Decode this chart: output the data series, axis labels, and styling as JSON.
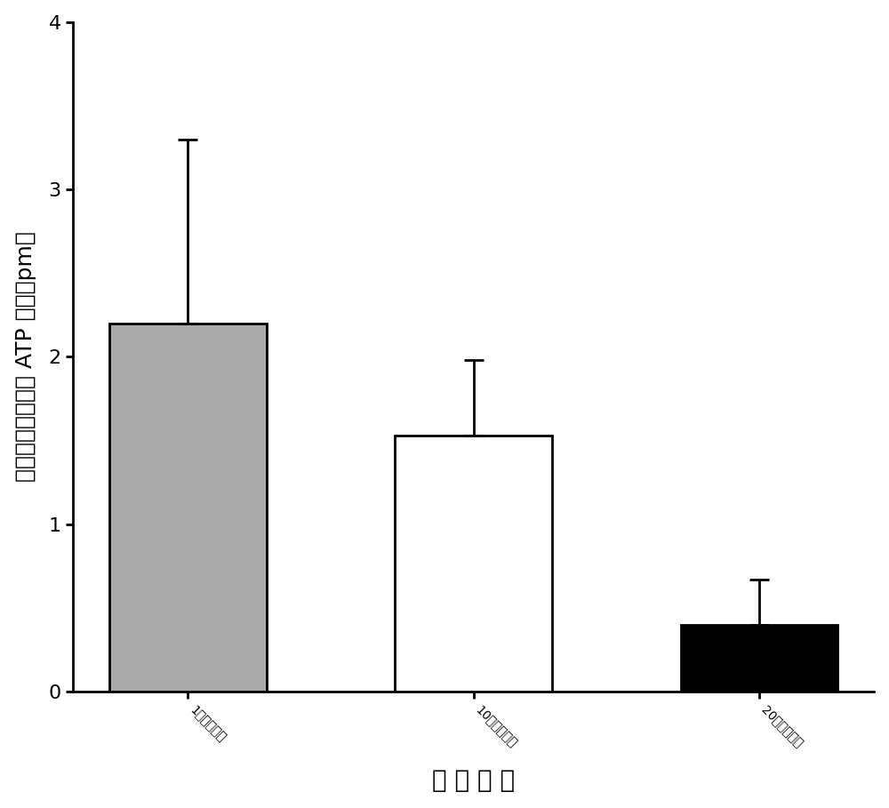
{
  "categories": [
    "1个卵母细胞",
    "10个卵母细胞",
    "20个卵母细胞"
  ],
  "values": [
    2.2,
    1.53,
    0.4
  ],
  "errors": [
    1.1,
    0.45,
    0.27
  ],
  "bar_colors": [
    "#aaaaaa",
    "#ffffff",
    "#000000"
  ],
  "bar_edgecolors": [
    "#000000",
    "#000000",
    "#000000"
  ],
  "bar_width": 0.55,
  "ylim": [
    0,
    4
  ],
  "yticks": [
    0,
    1,
    2,
    3,
    4
  ],
  "ylabel": "平均每个卵母细胞 ATP 含量（pm）",
  "xlabel": "样 品 数 量",
  "error_capsize": 8,
  "error_linewidth": 2,
  "bar_linewidth": 2,
  "title": "",
  "figsize": [
    10.0,
    9.09
  ],
  "dpi": 100,
  "font_size_ylabel": 18,
  "font_size_xlabel": 20,
  "font_size_ticks": 16,
  "background_color": "#ffffff"
}
